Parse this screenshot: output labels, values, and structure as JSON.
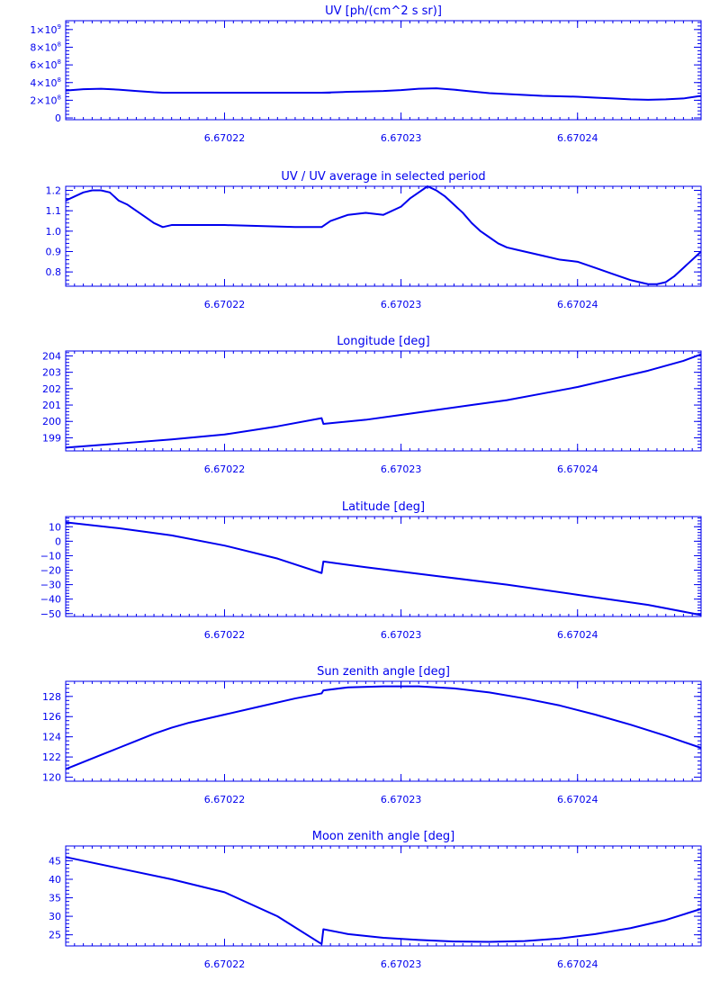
{
  "figure": {
    "color": "#0000ee",
    "panels_count": 6
  },
  "chart_data": [
    {
      "type": "line",
      "title": "UV [ph/(cm^2 s sr)]",
      "xlabel": "",
      "ylabel": "",
      "xlim": [
        6.670211,
        6.670247
      ],
      "ylim": [
        -20000000.0,
        1100000000.0
      ],
      "ylog": false,
      "x_ticks": [
        6.67022,
        6.67023,
        6.67024
      ],
      "x_tick_labels": [
        "6.67022",
        "6.67023",
        "6.67024"
      ],
      "y_ticks": [
        0,
        200000000.0,
        400000000.0,
        600000000.0,
        800000000.0,
        1000000000.0
      ],
      "y_tick_labels": [
        {
          "mant": "0",
          "exp": ""
        },
        {
          "mant": "2×10",
          "exp": "8"
        },
        {
          "mant": "4×10",
          "exp": "8"
        },
        {
          "mant": "6×10",
          "exp": "8"
        },
        {
          "mant": "8×10",
          "exp": "8"
        },
        {
          "mant": "1×10",
          "exp": "9"
        }
      ],
      "series": [
        {
          "x": [
            6.670211,
            6.670212,
            6.670213,
            6.670214,
            6.670215,
            6.670216,
            6.6702165,
            6.670218,
            6.67022,
            6.670222,
            6.670224,
            6.670226,
            6.6702255,
            6.670227,
            6.670228,
            6.670229,
            6.67023,
            6.670231,
            6.670232,
            6.670233,
            6.670234,
            6.670235,
            6.670236,
            6.670237,
            6.670238,
            6.670239,
            6.67024,
            6.670241,
            6.670242,
            6.670243,
            6.670244,
            6.670245,
            6.670246,
            6.670247
          ],
          "y": [
            310000000.0,
            325000000.0,
            330000000.0,
            320000000.0,
            305000000.0,
            290000000.0,
            285000000.0,
            285000000.0,
            285000000.0,
            285000000.0,
            285000000.0,
            285000000.0,
            285000000.0,
            295000000.0,
            300000000.0,
            305000000.0,
            315000000.0,
            330000000.0,
            335000000.0,
            320000000.0,
            300000000.0,
            280000000.0,
            270000000.0,
            260000000.0,
            250000000.0,
            245000000.0,
            240000000.0,
            230000000.0,
            220000000.0,
            210000000.0,
            205000000.0,
            210000000.0,
            220000000.0,
            250000000.0
          ]
        }
      ]
    },
    {
      "type": "line",
      "title": "UV / UV average in selected period",
      "xlabel": "",
      "ylabel": "",
      "xlim": [
        6.670211,
        6.670247
      ],
      "ylim": [
        0.73,
        1.22
      ],
      "ylog": false,
      "x_ticks": [
        6.67022,
        6.67023,
        6.67024
      ],
      "x_tick_labels": [
        "6.67022",
        "6.67023",
        "6.67024"
      ],
      "y_ticks": [
        0.8,
        0.9,
        1.0,
        1.1,
        1.2
      ],
      "y_tick_labels": [
        {
          "mant": "0.8",
          "exp": ""
        },
        {
          "mant": "0.9",
          "exp": ""
        },
        {
          "mant": "1.0",
          "exp": ""
        },
        {
          "mant": "1.1",
          "exp": ""
        },
        {
          "mant": "1.2",
          "exp": ""
        }
      ],
      "series": [
        {
          "x": [
            6.670211,
            6.6702115,
            6.670212,
            6.6702125,
            6.670213,
            6.6702135,
            6.670214,
            6.6702145,
            6.670215,
            6.6702155,
            6.670216,
            6.6702165,
            6.670217,
            6.670218,
            6.67022,
            6.670222,
            6.670224,
            6.6702255,
            6.670226,
            6.670227,
            6.670228,
            6.670229,
            6.67023,
            6.6702305,
            6.670231,
            6.6702315,
            6.670232,
            6.6702325,
            6.670233,
            6.6702335,
            6.670234,
            6.6702345,
            6.670235,
            6.6702355,
            6.670236,
            6.6702365,
            6.670237,
            6.670238,
            6.670239,
            6.67024,
            6.670241,
            6.670242,
            6.670243,
            6.6702435,
            6.670244,
            6.6702445,
            6.670245,
            6.6702455,
            6.670246,
            6.670247
          ],
          "y": [
            1.15,
            1.17,
            1.19,
            1.2,
            1.2,
            1.19,
            1.15,
            1.13,
            1.1,
            1.07,
            1.04,
            1.02,
            1.03,
            1.03,
            1.03,
            1.025,
            1.02,
            1.02,
            1.05,
            1.08,
            1.09,
            1.08,
            1.12,
            1.16,
            1.19,
            1.22,
            1.2,
            1.17,
            1.13,
            1.09,
            1.04,
            1.0,
            0.97,
            0.94,
            0.92,
            0.91,
            0.9,
            0.88,
            0.86,
            0.85,
            0.82,
            0.79,
            0.76,
            0.75,
            0.74,
            0.74,
            0.75,
            0.78,
            0.82,
            0.9
          ]
        }
      ]
    },
    {
      "type": "line",
      "title": "Longitude [deg]",
      "xlabel": "",
      "ylabel": "",
      "xlim": [
        6.670211,
        6.670247
      ],
      "ylim": [
        198.2,
        204.3
      ],
      "ylog": false,
      "x_ticks": [
        6.67022,
        6.67023,
        6.67024
      ],
      "x_tick_labels": [
        "6.67022",
        "6.67023",
        "6.67024"
      ],
      "y_ticks": [
        199,
        200,
        201,
        202,
        203,
        204
      ],
      "y_tick_labels": [
        {
          "mant": "199",
          "exp": ""
        },
        {
          "mant": "200",
          "exp": ""
        },
        {
          "mant": "201",
          "exp": ""
        },
        {
          "mant": "202",
          "exp": ""
        },
        {
          "mant": "203",
          "exp": ""
        },
        {
          "mant": "204",
          "exp": ""
        }
      ],
      "series": [
        {
          "x": [
            6.670211,
            6.670214,
            6.670217,
            6.67022,
            6.670223,
            6.6702255,
            6.6702256,
            6.670228,
            6.67023,
            6.670232,
            6.670234,
            6.670236,
            6.670238,
            6.67024,
            6.670242,
            6.670244,
            6.670246,
            6.670247
          ],
          "y": [
            198.4,
            198.65,
            198.9,
            199.2,
            199.7,
            200.2,
            199.85,
            200.1,
            200.4,
            200.7,
            201.0,
            201.3,
            201.7,
            202.1,
            202.6,
            203.1,
            203.7,
            204.1
          ]
        }
      ]
    },
    {
      "type": "line",
      "title": "Latitude [deg]",
      "xlabel": "",
      "ylabel": "",
      "xlim": [
        6.670211,
        6.670247
      ],
      "ylim": [
        -52,
        17
      ],
      "ylog": false,
      "x_ticks": [
        6.67022,
        6.67023,
        6.67024
      ],
      "x_tick_labels": [
        "6.67022",
        "6.67023",
        "6.67024"
      ],
      "y_ticks": [
        -50,
        -40,
        -30,
        -20,
        -10,
        0,
        10
      ],
      "y_tick_labels": [
        {
          "mant": "−50",
          "exp": ""
        },
        {
          "mant": "−40",
          "exp": ""
        },
        {
          "mant": "−30",
          "exp": ""
        },
        {
          "mant": "−20",
          "exp": ""
        },
        {
          "mant": "−10",
          "exp": ""
        },
        {
          "mant": "0",
          "exp": ""
        },
        {
          "mant": "10",
          "exp": ""
        }
      ],
      "series": [
        {
          "x": [
            6.670211,
            6.670214,
            6.670217,
            6.67022,
            6.670223,
            6.6702255,
            6.6702256,
            6.670228,
            6.670232,
            6.670236,
            6.67024,
            6.670244,
            6.670247
          ],
          "y": [
            13,
            9,
            4,
            -3,
            -12,
            -22,
            -14,
            -18,
            -24,
            -30,
            -37,
            -44,
            -51
          ]
        }
      ]
    },
    {
      "type": "line",
      "title": "Sun zenith angle [deg]",
      "xlabel": "",
      "ylabel": "",
      "xlim": [
        6.670211,
        6.670247
      ],
      "ylim": [
        119.6,
        129.5
      ],
      "ylog": false,
      "x_ticks": [
        6.67022,
        6.67023,
        6.67024
      ],
      "x_tick_labels": [
        "6.67022",
        "6.67023",
        "6.67024"
      ],
      "y_ticks": [
        120,
        122,
        124,
        126,
        128
      ],
      "y_tick_labels": [
        {
          "mant": "120",
          "exp": ""
        },
        {
          "mant": "122",
          "exp": ""
        },
        {
          "mant": "124",
          "exp": ""
        },
        {
          "mant": "126",
          "exp": ""
        },
        {
          "mant": "128",
          "exp": ""
        }
      ],
      "series": [
        {
          "x": [
            6.670211,
            6.670212,
            6.670213,
            6.670214,
            6.670215,
            6.670216,
            6.670217,
            6.670218,
            6.670219,
            6.67022,
            6.670222,
            6.670224,
            6.6702255,
            6.6702256,
            6.670227,
            6.670229,
            6.670231,
            6.670233,
            6.670235,
            6.670237,
            6.670239,
            6.670241,
            6.670243,
            6.670245,
            6.670247
          ],
          "y": [
            120.8,
            121.5,
            122.2,
            122.9,
            123.6,
            124.3,
            124.9,
            125.4,
            125.8,
            126.2,
            127.0,
            127.8,
            128.3,
            128.6,
            128.9,
            129.0,
            129.0,
            128.8,
            128.4,
            127.8,
            127.1,
            126.2,
            125.2,
            124.1,
            122.9
          ]
        }
      ]
    },
    {
      "type": "line",
      "title": "Moon zenith angle [deg]",
      "xlabel": "",
      "ylabel": "",
      "xlim": [
        6.670211,
        6.670247
      ],
      "ylim": [
        22,
        49
      ],
      "ylog": false,
      "x_ticks": [
        6.67022,
        6.67023,
        6.67024
      ],
      "x_tick_labels": [
        "6.67022",
        "6.67023",
        "6.67024"
      ],
      "y_ticks": [
        25,
        30,
        35,
        40,
        45
      ],
      "y_tick_labels": [
        {
          "mant": "25",
          "exp": ""
        },
        {
          "mant": "30",
          "exp": ""
        },
        {
          "mant": "35",
          "exp": ""
        },
        {
          "mant": "40",
          "exp": ""
        },
        {
          "mant": "45",
          "exp": ""
        }
      ],
      "series": [
        {
          "x": [
            6.670211,
            6.670214,
            6.670217,
            6.67022,
            6.670223,
            6.6702255,
            6.6702256,
            6.670227,
            6.670229,
            6.670231,
            6.670233,
            6.670235,
            6.670237,
            6.670239,
            6.670241,
            6.670243,
            6.670245,
            6.670247
          ],
          "y": [
            46,
            43,
            40,
            36.5,
            30,
            22.5,
            26.5,
            25.2,
            24.2,
            23.6,
            23.2,
            23.1,
            23.3,
            24.0,
            25.2,
            26.8,
            29.0,
            32
          ]
        }
      ]
    }
  ]
}
